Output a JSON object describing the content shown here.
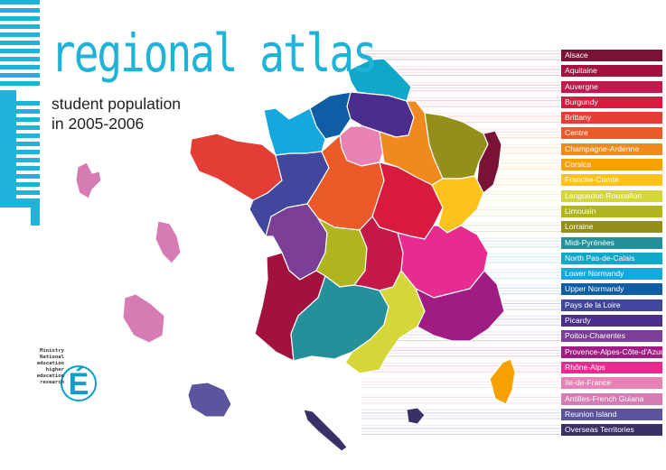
{
  "header": {
    "title": "regional atlas",
    "subtitle_line1": "student population",
    "subtitle_line2": "in 2005-2006"
  },
  "ministry": {
    "lines": [
      "Ministry",
      "National",
      "education",
      "higher",
      "education",
      "research"
    ],
    "logo_letter": "É"
  },
  "accent_color": "#1fb3d9",
  "regions": [
    {
      "label": "Alsace",
      "color": "#7a1233"
    },
    {
      "label": "Aquitaine",
      "color": "#a3123f"
    },
    {
      "label": "Auvergne",
      "color": "#c4184a"
    },
    {
      "label": "Burgundy",
      "color": "#d71a3e"
    },
    {
      "label": "Brittany",
      "color": "#e23e36"
    },
    {
      "label": "Centre",
      "color": "#ec5a2a"
    },
    {
      "label": "Champagne-Ardenne",
      "color": "#f08a1e"
    },
    {
      "label": "Corsica",
      "color": "#f6a100"
    },
    {
      "label": "Franche-Comté",
      "color": "#fdc21c"
    },
    {
      "label": "Languedoc-Roussillon",
      "color": "#d5d63a"
    },
    {
      "label": "Limousin",
      "color": "#b0b51f"
    },
    {
      "label": "Lorraine",
      "color": "#948f1b"
    },
    {
      "label": "Midi-Pyrénées",
      "color": "#24909a"
    },
    {
      "label": "North Pas-de-Calais",
      "color": "#11a7c9"
    },
    {
      "label": "Lower Normandy",
      "color": "#15a8df"
    },
    {
      "label": "Upper Normandy",
      "color": "#0f5ea5"
    },
    {
      "label": "Pays de la Loire",
      "color": "#40479c"
    },
    {
      "label": "Picardy",
      "color": "#4a2d8c"
    },
    {
      "label": "Poitou-Charentes",
      "color": "#7b3f95"
    },
    {
      "label": "Provence-Alpes-Côte-d'Azur",
      "color": "#a01c83"
    },
    {
      "label": "Rhône-Alps",
      "color": "#e62c91"
    },
    {
      "label": "Ile-de-France",
      "color": "#e882b5"
    },
    {
      "label": "Antilles-French Guiana",
      "color": "#d77bb4"
    },
    {
      "label": "Reunion Island",
      "color": "#5b55a0"
    },
    {
      "label": "Overseas Territories",
      "color": "#3a2f66"
    }
  ]
}
